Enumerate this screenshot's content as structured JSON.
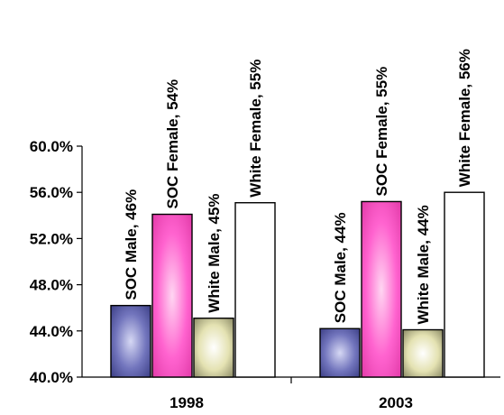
{
  "chart_data": {
    "type": "bar",
    "categories": [
      "1998",
      "2003"
    ],
    "series": [
      {
        "name": "SOC Male",
        "values": [
          46.2,
          44.2
        ],
        "labels": [
          "SOC Male, 46%",
          "SOC Male, 44%"
        ],
        "color": "#5b5fa8"
      },
      {
        "name": "SOC Female",
        "values": [
          54.1,
          55.2
        ],
        "labels": [
          "SOC Female, 54%",
          "SOC Female, 55%"
        ],
        "color": "#ff55c8"
      },
      {
        "name": "White Male",
        "values": [
          45.1,
          44.1
        ],
        "labels": [
          "White Male, 45%",
          "White Male, 44%"
        ],
        "color": "#e8e6b8"
      },
      {
        "name": "White Female",
        "values": [
          55.1,
          56.0
        ],
        "labels": [
          "White Female, 55%",
          "White Female, 56%"
        ],
        "color": "#ffffff"
      }
    ],
    "ylim": [
      40,
      60
    ],
    "yticks": [
      40,
      44,
      48,
      52,
      56,
      60
    ],
    "ytick_labels": [
      "40.0%",
      "44.0%",
      "48.0%",
      "52.0%",
      "56.0%",
      "60.0%"
    ],
    "title": "",
    "xlabel": "",
    "ylabel": "",
    "grid": false,
    "legend": false
  }
}
